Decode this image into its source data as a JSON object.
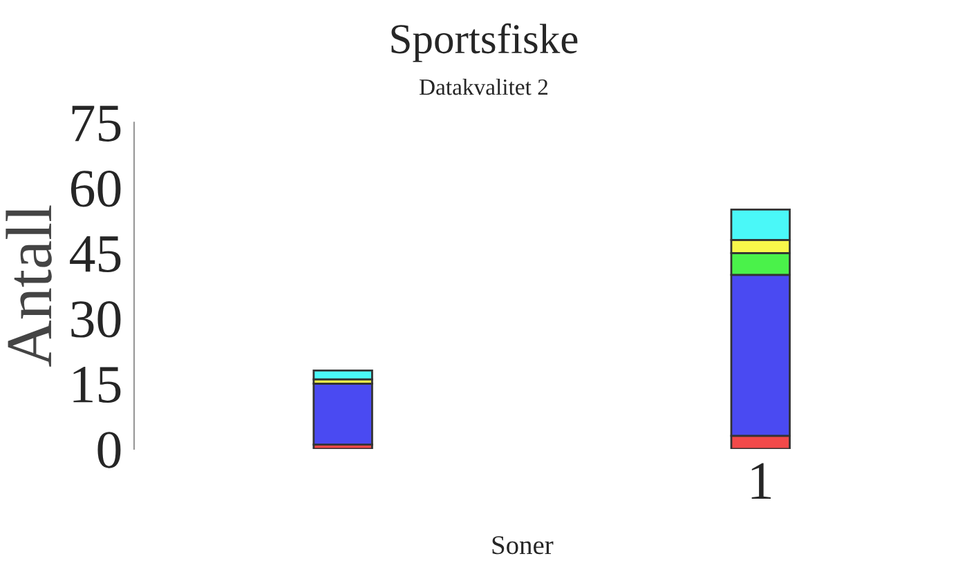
{
  "chart_data": {
    "type": "bar",
    "title": "Sportsfiske",
    "subtitle": "Datakvalitet 2",
    "xlabel": "Soner",
    "ylabel": "Antall",
    "categories": [
      null,
      "1"
    ],
    "stacked": true,
    "series": [
      {
        "color": "#f24a4a",
        "values": [
          1,
          3
        ]
      },
      {
        "color": "#4a4af2",
        "values": [
          14,
          37
        ]
      },
      {
        "color": "#4af24a",
        "values": [
          0,
          5
        ]
      },
      {
        "color": "#f8f84a",
        "values": [
          1,
          3
        ]
      },
      {
        "color": "#4af8f8",
        "values": [
          2,
          7
        ]
      }
    ],
    "ylim": [
      0,
      75
    ],
    "yticks": [
      0,
      15,
      30,
      45,
      60,
      75
    ],
    "grid": false,
    "legend": false
  }
}
